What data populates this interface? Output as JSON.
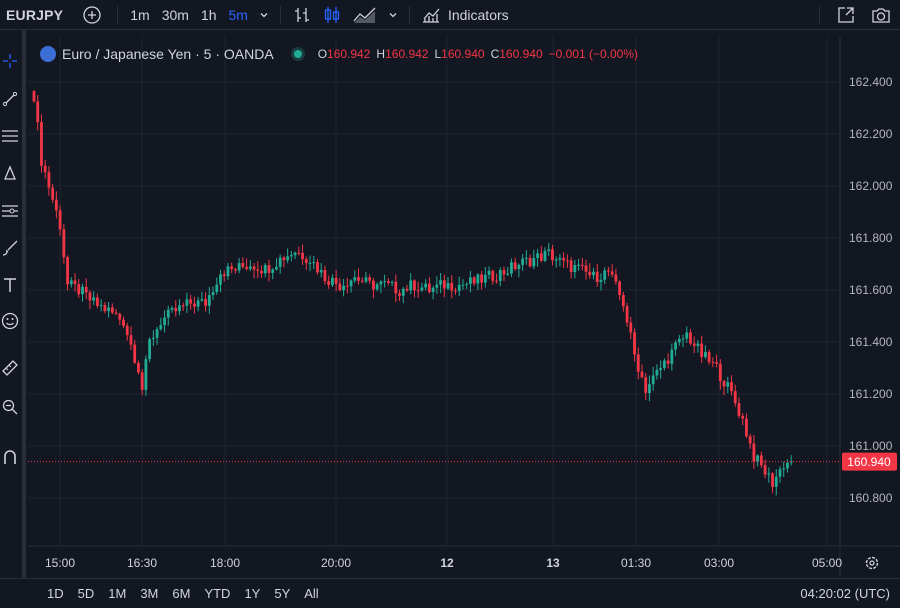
{
  "toolbar": {
    "symbol": "EURJPY",
    "intervals": [
      "1m",
      "30m",
      "1h",
      "5m"
    ],
    "active_interval": "5m",
    "indicators_label": "Indicators"
  },
  "legend": {
    "title": "Euro / Japanese Yen · 5 · OANDA",
    "o_label": "O",
    "o_value": "160.942",
    "h_label": "H",
    "h_value": "160.942",
    "l_label": "L",
    "l_value": "160.940",
    "c_label": "C",
    "c_value": "160.940",
    "change": "−0.001 (−0.00%)"
  },
  "ranges": [
    "1D",
    "5D",
    "1M",
    "3M",
    "6M",
    "YTD",
    "1Y",
    "5Y",
    "All"
  ],
  "clock": "04:20:02 (UTC)",
  "colors": {
    "up": "#22ab94",
    "down": "#f23645",
    "background": "#131722",
    "grid": "#1f2330",
    "accent": "#2962ff"
  },
  "chart_data": {
    "type": "candlestick",
    "interval": "5m",
    "x_ticks": [
      "15:00",
      "16:30",
      "18:00",
      "20:00",
      "12",
      "13",
      "01:30",
      "03:00",
      "05:00"
    ],
    "y_ticks": [
      162.4,
      162.2,
      162.0,
      161.8,
      161.6,
      161.4,
      161.2,
      161.0,
      160.8
    ],
    "ylim": [
      160.71,
      162.52
    ],
    "last_price": 160.94,
    "last_price_label": "160.940",
    "grid": true,
    "waypoints": [
      [
        0,
        162.35
      ],
      [
        2,
        162.1
      ],
      [
        5,
        161.95
      ],
      [
        7,
        161.85
      ],
      [
        9,
        161.62
      ],
      [
        12,
        161.6
      ],
      [
        16,
        161.55
      ],
      [
        20,
        161.52
      ],
      [
        24,
        161.48
      ],
      [
        28,
        161.3
      ],
      [
        29,
        161.22
      ],
      [
        31,
        161.4
      ],
      [
        34,
        161.48
      ],
      [
        38,
        161.52
      ],
      [
        42,
        161.55
      ],
      [
        46,
        161.55
      ],
      [
        50,
        161.67
      ],
      [
        54,
        161.68
      ],
      [
        58,
        161.7
      ],
      [
        62,
        161.68
      ],
      [
        66,
        161.72
      ],
      [
        70,
        161.75
      ],
      [
        74,
        161.72
      ],
      [
        78,
        161.65
      ],
      [
        82,
        161.62
      ],
      [
        86,
        161.65
      ],
      [
        90,
        161.62
      ],
      [
        94,
        161.62
      ],
      [
        98,
        161.6
      ],
      [
        102,
        161.62
      ],
      [
        106,
        161.6
      ],
      [
        110,
        161.62
      ],
      [
        114,
        161.62
      ],
      [
        118,
        161.63
      ],
      [
        122,
        161.65
      ],
      [
        126,
        161.67
      ],
      [
        130,
        161.7
      ],
      [
        134,
        161.72
      ],
      [
        138,
        161.74
      ],
      [
        142,
        161.7
      ],
      [
        146,
        161.68
      ],
      [
        150,
        161.65
      ],
      [
        154,
        161.67
      ],
      [
        158,
        161.55
      ],
      [
        161,
        161.35
      ],
      [
        164,
        161.22
      ],
      [
        168,
        161.3
      ],
      [
        172,
        161.38
      ],
      [
        175,
        161.43
      ],
      [
        179,
        161.35
      ],
      [
        183,
        161.3
      ],
      [
        187,
        161.2
      ],
      [
        190,
        161.1
      ],
      [
        193,
        160.96
      ],
      [
        196,
        160.9
      ],
      [
        198,
        160.86
      ],
      [
        201,
        160.93
      ],
      [
        203,
        160.94
      ]
    ]
  }
}
